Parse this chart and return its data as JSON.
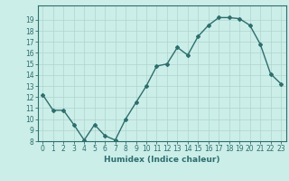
{
  "x": [
    0,
    1,
    2,
    3,
    4,
    5,
    6,
    7,
    8,
    9,
    10,
    11,
    12,
    13,
    14,
    15,
    16,
    17,
    18,
    19,
    20,
    21,
    22,
    23
  ],
  "y": [
    12.2,
    10.8,
    10.8,
    9.5,
    8.1,
    9.5,
    8.5,
    8.1,
    10.0,
    11.5,
    13.0,
    14.8,
    15.0,
    16.5,
    15.8,
    17.5,
    18.5,
    19.2,
    19.2,
    19.1,
    18.5,
    16.8,
    14.1,
    13.2
  ],
  "xlabel": "Humidex (Indice chaleur)",
  "ylim": [
    8,
    20
  ],
  "xlim": [
    -0.5,
    23.5
  ],
  "yticks": [
    8,
    9,
    10,
    11,
    12,
    13,
    14,
    15,
    16,
    17,
    18,
    19
  ],
  "xticks": [
    0,
    1,
    2,
    3,
    4,
    5,
    6,
    7,
    8,
    9,
    10,
    11,
    12,
    13,
    14,
    15,
    16,
    17,
    18,
    19,
    20,
    21,
    22,
    23
  ],
  "line_color": "#2d6e6e",
  "marker": "D",
  "marker_size": 2,
  "bg_color": "#cceee8",
  "grid_color": "#aed4ce",
  "axes_color": "#2d6e6e",
  "label_color": "#2d6e6e",
  "xlabel_fontsize": 6.5,
  "tick_fontsize": 5.5
}
